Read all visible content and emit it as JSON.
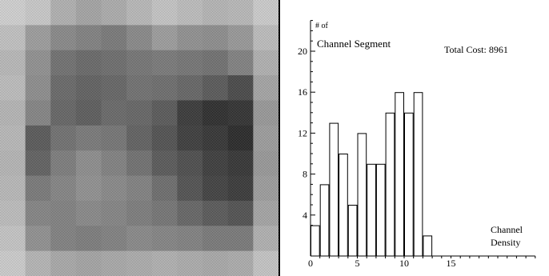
{
  "heatmap": {
    "rows": 11,
    "cols": 11,
    "cells": [
      [
        230,
        220,
        190,
        175,
        185,
        200,
        215,
        205,
        195,
        200,
        225
      ],
      [
        210,
        165,
        140,
        130,
        120,
        140,
        165,
        150,
        145,
        160,
        205
      ],
      [
        200,
        150,
        110,
        100,
        105,
        115,
        120,
        115,
        110,
        130,
        190
      ],
      [
        205,
        145,
        100,
        90,
        95,
        110,
        105,
        95,
        80,
        60,
        175
      ],
      [
        195,
        135,
        95,
        85,
        100,
        95,
        80,
        40,
        25,
        30,
        160
      ],
      [
        200,
        80,
        110,
        120,
        115,
        90,
        70,
        45,
        35,
        20,
        165
      ],
      [
        195,
        90,
        125,
        145,
        130,
        110,
        80,
        65,
        45,
        35,
        160
      ],
      [
        200,
        120,
        135,
        150,
        140,
        130,
        105,
        70,
        50,
        40,
        165
      ],
      [
        205,
        135,
        130,
        140,
        135,
        125,
        115,
        95,
        80,
        70,
        175
      ],
      [
        215,
        150,
        130,
        125,
        130,
        140,
        135,
        130,
        120,
        120,
        190
      ],
      [
        225,
        195,
        180,
        175,
        180,
        185,
        190,
        185,
        180,
        185,
        215
      ]
    ]
  },
  "chart_data": {
    "type": "bar",
    "x": [
      1,
      2,
      3,
      4,
      5,
      6,
      7,
      8,
      9,
      10,
      11,
      12,
      13
    ],
    "values": [
      3,
      7,
      13,
      10,
      5,
      12,
      9,
      9,
      14,
      16,
      14,
      16,
      2
    ],
    "title": "",
    "ylabel_line1": "# of",
    "ylabel_line2": "Channel Segment",
    "xlabel_line1": "Channel",
    "xlabel_line2": "Density",
    "annotation": "Total Cost: 8961",
    "yticks": [
      4,
      8,
      12,
      16,
      20
    ],
    "xticks": [
      0,
      5,
      10,
      15
    ],
    "ylim": [
      0,
      23
    ],
    "xlim": [
      0,
      24
    ]
  }
}
